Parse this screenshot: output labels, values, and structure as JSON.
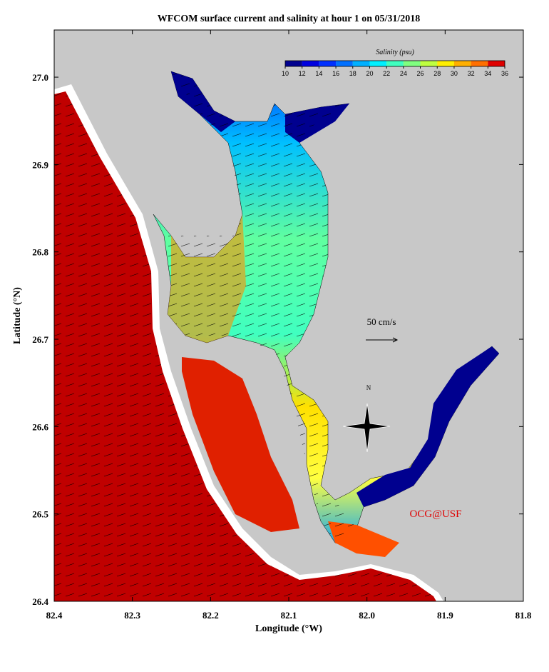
{
  "title": "WFCOM surface current and salinity at hour 1 on 05/31/2018",
  "x_axis": {
    "label": "Longitude (°W)",
    "lim": [
      82.4,
      81.8
    ],
    "ticks": [
      82.4,
      82.3,
      82.2,
      82.1,
      {
        "value": 82.0,
        "label": "82.0"
      },
      81.9,
      81.8
    ]
  },
  "y_axis": {
    "label": "Latitude (°N)",
    "lim": [
      26.4,
      27.054
    ],
    "ticks": [
      26.4,
      26.5,
      26.6,
      26.7,
      26.8,
      26.9,
      {
        "value": 27.0,
        "label": "27.0"
      }
    ]
  },
  "colorbar": {
    "label": "Salinity (psu)",
    "ticks": [
      10,
      12,
      14,
      16,
      18,
      20,
      22,
      24,
      26,
      28,
      30,
      32,
      34,
      36
    ],
    "colors": [
      "#00008f",
      "#0000df",
      "#0030ff",
      "#0070ff",
      "#00b0ff",
      "#00f0ff",
      "#40ffbf",
      "#80ff80",
      "#bfff40",
      "#ffef00",
      "#ffaf00",
      "#ff6f00",
      "#df0000"
    ]
  },
  "scale_label": "50 cm/s",
  "north_label": "N",
  "credit": "OCG@USF"
}
